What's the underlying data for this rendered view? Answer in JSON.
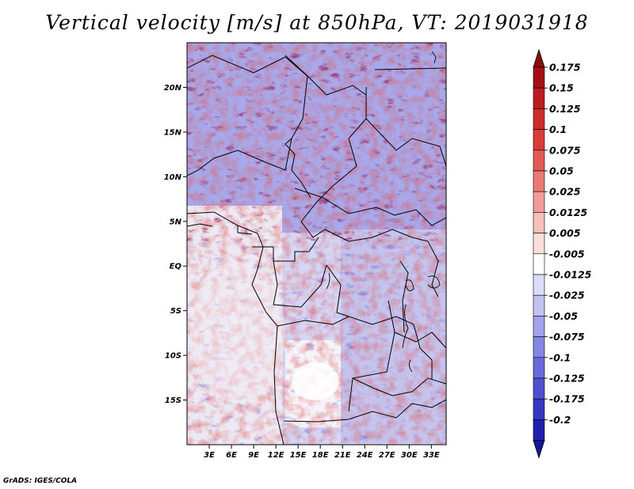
{
  "title": "Vertical velocity [m/s] at 850hPa, VT: 2019031918",
  "credit": "GrADS: IGES/COLA",
  "map": {
    "lon_range": [
      0,
      35
    ],
    "lat_range": [
      -20,
      25
    ],
    "lat_ticks": [
      {
        "value": 20,
        "label": "20N"
      },
      {
        "value": 15,
        "label": "15N"
      },
      {
        "value": 10,
        "label": "10N"
      },
      {
        "value": 5,
        "label": "5N"
      },
      {
        "value": 0,
        "label": "EQ"
      },
      {
        "value": -5,
        "label": "5S"
      },
      {
        "value": -10,
        "label": "10S"
      },
      {
        "value": -15,
        "label": "15S"
      }
    ],
    "lon_ticks": [
      {
        "value": 3,
        "label": "3E"
      },
      {
        "value": 6,
        "label": "6E"
      },
      {
        "value": 9,
        "label": "9E"
      },
      {
        "value": 12,
        "label": "12E"
      },
      {
        "value": 15,
        "label": "15E"
      },
      {
        "value": 18,
        "label": "18E"
      },
      {
        "value": 21,
        "label": "21E"
      },
      {
        "value": 24,
        "label": "24E"
      },
      {
        "value": 27,
        "label": "27E"
      },
      {
        "value": 30,
        "label": "30E"
      },
      {
        "value": 33,
        "label": "33E"
      }
    ]
  },
  "colorbar": {
    "levels": [
      {
        "label": "0.175",
        "color": "#a50f15"
      },
      {
        "label": "0.15",
        "color": "#bb1c1f"
      },
      {
        "label": "0.125",
        "color": "#cb2d2a"
      },
      {
        "label": "0.1",
        "color": "#d83c39"
      },
      {
        "label": "0.075",
        "color": "#e25a56"
      },
      {
        "label": "0.05",
        "color": "#ea7a75"
      },
      {
        "label": "0.025",
        "color": "#f19c98"
      },
      {
        "label": "0.0125",
        "color": "#f7bfbc"
      },
      {
        "label": "0.005",
        "color": "#fbdedc"
      },
      {
        "label": "-0.005",
        "color": "#ffffff"
      },
      {
        "label": "-0.0125",
        "color": "#dcdcf8"
      },
      {
        "label": "-0.025",
        "color": "#c1c1f2"
      },
      {
        "label": "-0.05",
        "color": "#a3a3ec"
      },
      {
        "label": "-0.075",
        "color": "#8585e4"
      },
      {
        "label": "-0.1",
        "color": "#6a6adb"
      },
      {
        "label": "-0.125",
        "color": "#5050cf"
      },
      {
        "label": "-0.175",
        "color": "#3737c2"
      },
      {
        "label": "-0.2",
        "color": "#2020b0"
      }
    ],
    "top_color": "#8b0a10",
    "bottom_color": "#15159a"
  }
}
